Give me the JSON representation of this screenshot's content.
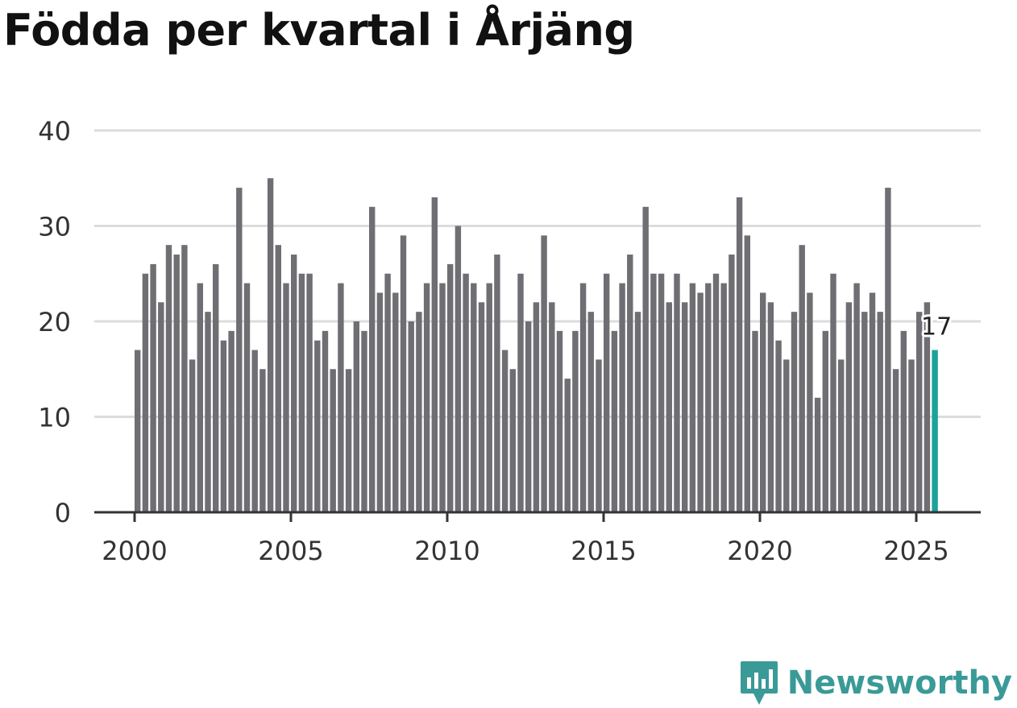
{
  "title": "Födda per kvartal i Årjäng",
  "logo_text": "Newsworthy",
  "colors": {
    "bar": "#6f6e73",
    "highlight": "#1aa39a",
    "grid": "#dcdcdc",
    "axis": "#333333",
    "brand": "#3a9a97"
  },
  "chart_data": {
    "type": "bar",
    "title": "Födda per kvartal i Årjäng",
    "xlabel": "",
    "ylabel": "",
    "ylim": [
      0,
      40
    ],
    "yticks": [
      0,
      10,
      20,
      30,
      40
    ],
    "xtick_labels": [
      "2000",
      "2005",
      "2010",
      "2015",
      "2020",
      "2025"
    ],
    "categories": [
      "2000 Q1",
      "2000 Q2",
      "2000 Q3",
      "2000 Q4",
      "2001 Q1",
      "2001 Q2",
      "2001 Q3",
      "2001 Q4",
      "2002 Q1",
      "2002 Q2",
      "2002 Q3",
      "2002 Q4",
      "2003 Q1",
      "2003 Q2",
      "2003 Q3",
      "2003 Q4",
      "2004 Q1",
      "2004 Q2",
      "2004 Q3",
      "2004 Q4",
      "2005 Q1",
      "2005 Q2",
      "2005 Q3",
      "2005 Q4",
      "2006 Q1",
      "2006 Q2",
      "2006 Q3",
      "2006 Q4",
      "2007 Q1",
      "2007 Q2",
      "2007 Q3",
      "2007 Q4",
      "2008 Q1",
      "2008 Q2",
      "2008 Q3",
      "2008 Q4",
      "2009 Q1",
      "2009 Q2",
      "2009 Q3",
      "2009 Q4",
      "2010 Q1",
      "2010 Q2",
      "2010 Q3",
      "2010 Q4",
      "2011 Q1",
      "2011 Q2",
      "2011 Q3",
      "2011 Q4",
      "2012 Q1",
      "2012 Q2",
      "2012 Q3",
      "2012 Q4",
      "2013 Q1",
      "2013 Q2",
      "2013 Q3",
      "2013 Q4",
      "2014 Q1",
      "2014 Q2",
      "2014 Q3",
      "2014 Q4",
      "2015 Q1",
      "2015 Q2",
      "2015 Q3",
      "2015 Q4",
      "2016 Q1",
      "2016 Q2",
      "2016 Q3",
      "2016 Q4",
      "2017 Q1",
      "2017 Q2",
      "2017 Q3",
      "2017 Q4",
      "2018 Q1",
      "2018 Q2",
      "2018 Q3",
      "2018 Q4",
      "2019 Q1",
      "2019 Q2",
      "2019 Q3",
      "2019 Q4",
      "2020 Q1",
      "2020 Q2",
      "2020 Q3",
      "2020 Q4",
      "2021 Q1",
      "2021 Q2",
      "2021 Q3",
      "2021 Q4",
      "2022 Q1",
      "2022 Q2",
      "2022 Q3",
      "2022 Q4",
      "2023 Q1",
      "2023 Q2",
      "2023 Q3",
      "2023 Q4",
      "2024 Q1",
      "2024 Q2",
      "2024 Q3",
      "2024 Q4",
      "2025 Q1",
      "2025 Q2",
      "2025 Q3"
    ],
    "values": [
      17,
      25,
      26,
      22,
      28,
      27,
      28,
      16,
      24,
      21,
      26,
      18,
      19,
      34,
      24,
      17,
      15,
      35,
      28,
      24,
      27,
      25,
      25,
      18,
      19,
      15,
      24,
      15,
      20,
      19,
      32,
      23,
      25,
      23,
      29,
      20,
      21,
      24,
      33,
      24,
      26,
      30,
      25,
      24,
      22,
      24,
      27,
      17,
      15,
      25,
      20,
      22,
      29,
      22,
      19,
      14,
      19,
      24,
      21,
      16,
      25,
      19,
      24,
      27,
      21,
      32,
      25,
      25,
      22,
      25,
      22,
      24,
      23,
      24,
      25,
      24,
      27,
      33,
      29,
      19,
      23,
      22,
      18,
      16,
      21,
      28,
      23,
      12,
      19,
      25,
      16,
      22,
      24,
      21,
      23,
      21,
      34,
      15,
      19,
      16,
      21,
      22,
      17
    ],
    "highlight_index": 102,
    "highlight_label": "17"
  }
}
